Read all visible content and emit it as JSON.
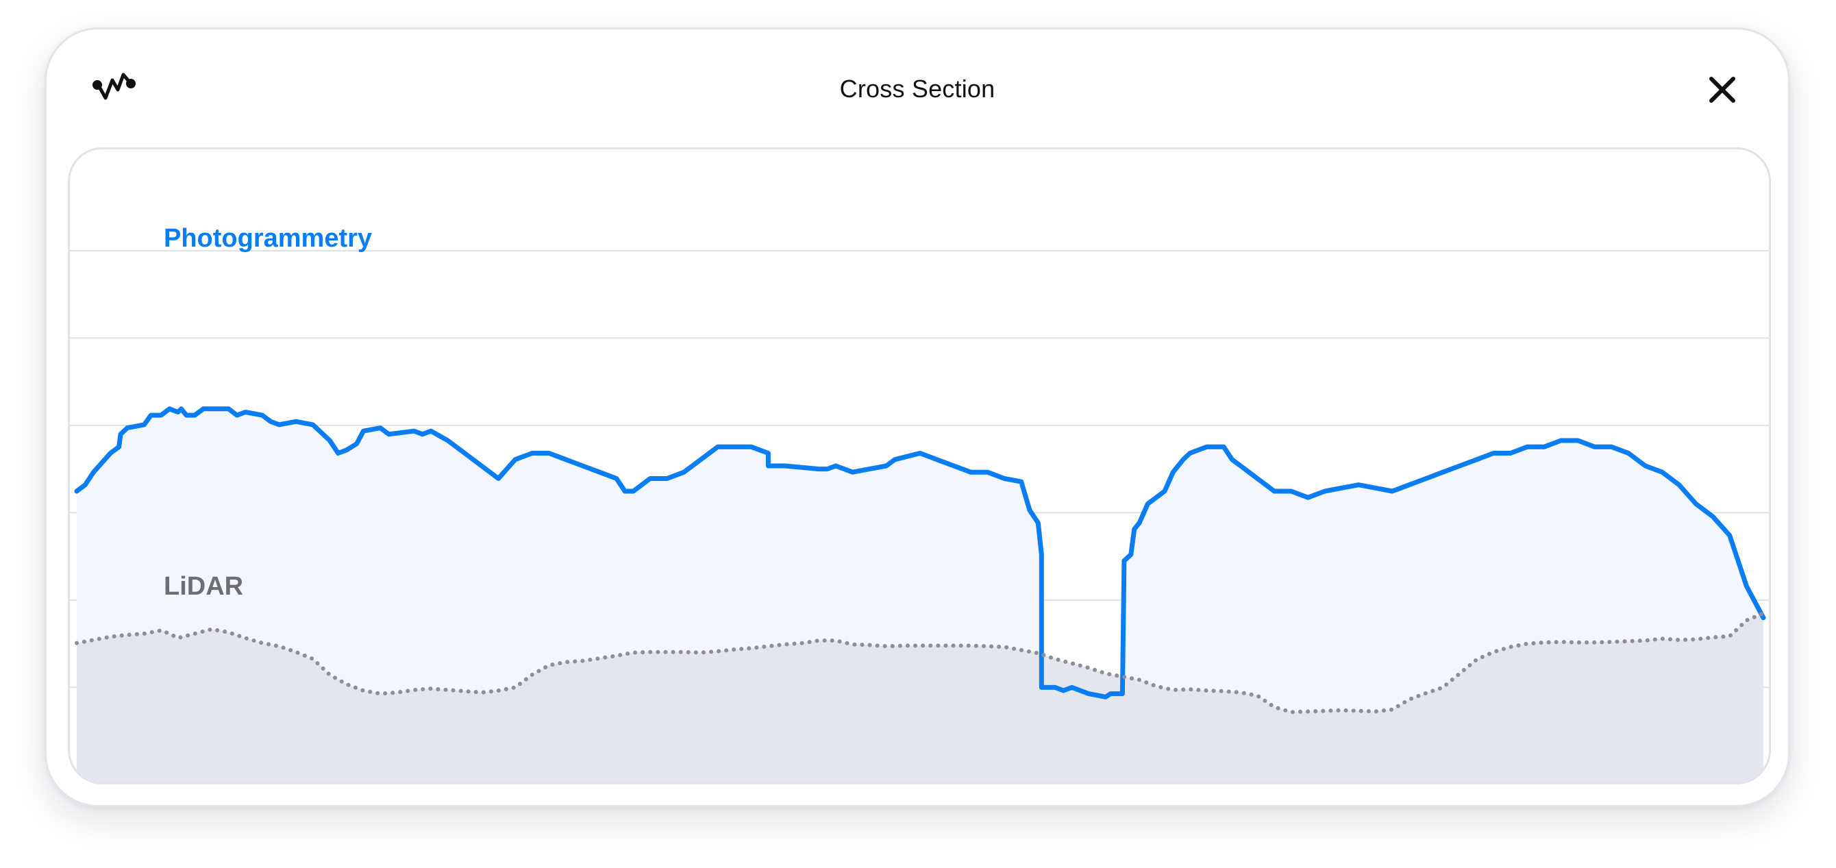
{
  "window": {
    "title": "Cross Section"
  },
  "icons": {
    "app": "waveform-icon",
    "close": "close-icon"
  },
  "colors": {
    "photogrammetry": "#0a7df2",
    "photogrammetry_fill": "#f3f7fd",
    "lidar": "#8d8f94",
    "lidar_fill": "#e3e6ed",
    "grid": "#dde0e5"
  },
  "chart_data": {
    "type": "line",
    "title": "",
    "xlabel": "",
    "ylabel": "",
    "grid": true,
    "ylim": [
      0,
      100
    ],
    "xlim": [
      0,
      100
    ],
    "series": [
      {
        "name": "Photogrammetry",
        "style": "solid",
        "points": [
          [
            0,
            46
          ],
          [
            0.5,
            47
          ],
          [
            1,
            49
          ],
          [
            2,
            52
          ],
          [
            2.5,
            53
          ],
          [
            2.6,
            55
          ],
          [
            3,
            56
          ],
          [
            4,
            56.5
          ],
          [
            4.4,
            58
          ],
          [
            5,
            58
          ],
          [
            5.5,
            59
          ],
          [
            6,
            58.5
          ],
          [
            6.2,
            59
          ],
          [
            6.5,
            58
          ],
          [
            7,
            58
          ],
          [
            7.5,
            59
          ],
          [
            9,
            59
          ],
          [
            9.5,
            58
          ],
          [
            10,
            58.5
          ],
          [
            11,
            58
          ],
          [
            11.5,
            57
          ],
          [
            12,
            56.5
          ],
          [
            13,
            57
          ],
          [
            14,
            56.5
          ],
          [
            15,
            54
          ],
          [
            15.5,
            52
          ],
          [
            16,
            52.5
          ],
          [
            16.6,
            53.5
          ],
          [
            17,
            55.5
          ],
          [
            18,
            56
          ],
          [
            18.5,
            55
          ],
          [
            20,
            55.5
          ],
          [
            20.5,
            55
          ],
          [
            21,
            55.5
          ],
          [
            22,
            54
          ],
          [
            23,
            52
          ],
          [
            24,
            50
          ],
          [
            25,
            48
          ],
          [
            25.5,
            49.5
          ],
          [
            26,
            51
          ],
          [
            27,
            52
          ],
          [
            28,
            52
          ],
          [
            29,
            51
          ],
          [
            30,
            50
          ],
          [
            31,
            49
          ],
          [
            32,
            48
          ],
          [
            32.5,
            46
          ],
          [
            33,
            46
          ],
          [
            33.5,
            47
          ],
          [
            34,
            48
          ],
          [
            35,
            48
          ],
          [
            36,
            49
          ],
          [
            37,
            51
          ],
          [
            38,
            53
          ],
          [
            39,
            53
          ],
          [
            40,
            53
          ],
          [
            41,
            52
          ],
          [
            41,
            50
          ],
          [
            42,
            50
          ],
          [
            44,
            49.5
          ],
          [
            44.5,
            49.5
          ],
          [
            45,
            50
          ],
          [
            46,
            49
          ],
          [
            47,
            49.5
          ],
          [
            48,
            50
          ],
          [
            48.5,
            51
          ],
          [
            50,
            52
          ],
          [
            51,
            51
          ],
          [
            52,
            50
          ],
          [
            53,
            49
          ],
          [
            54,
            49
          ],
          [
            55,
            48
          ],
          [
            56,
            47.5
          ],
          [
            56.5,
            43
          ],
          [
            57,
            41
          ],
          [
            57.2,
            36
          ],
          [
            57.2,
            15
          ],
          [
            57.7,
            15
          ],
          [
            58,
            15
          ],
          [
            58.5,
            14.5
          ],
          [
            59,
            15
          ],
          [
            60,
            14
          ],
          [
            61,
            13.5
          ],
          [
            61.3,
            14
          ],
          [
            62,
            14
          ],
          [
            62.1,
            35
          ],
          [
            62.5,
            36
          ],
          [
            62.7,
            40
          ],
          [
            63,
            41
          ],
          [
            63.5,
            44
          ],
          [
            64,
            45
          ],
          [
            64.5,
            46
          ],
          [
            65,
            49
          ],
          [
            65.6,
            51
          ],
          [
            66,
            52
          ],
          [
            66.5,
            52.5
          ],
          [
            67,
            53
          ],
          [
            68,
            53
          ],
          [
            68.5,
            51
          ],
          [
            69,
            50
          ],
          [
            69.5,
            49
          ],
          [
            70,
            48
          ],
          [
            70.5,
            47
          ],
          [
            71,
            46
          ],
          [
            72,
            46
          ],
          [
            73,
            45
          ],
          [
            74,
            46
          ],
          [
            75,
            46.5
          ],
          [
            76,
            47
          ],
          [
            77,
            46.5
          ],
          [
            78,
            46
          ],
          [
            79,
            47
          ],
          [
            80,
            48
          ],
          [
            81,
            49
          ],
          [
            82,
            50
          ],
          [
            83,
            51
          ],
          [
            84,
            52
          ],
          [
            85,
            52
          ],
          [
            86,
            53
          ],
          [
            87,
            53
          ],
          [
            88,
            54
          ],
          [
            89,
            54
          ],
          [
            90,
            53
          ],
          [
            91,
            53
          ],
          [
            92,
            52
          ],
          [
            93,
            50
          ],
          [
            94,
            49
          ],
          [
            95,
            47
          ],
          [
            96,
            44
          ],
          [
            97,
            42
          ],
          [
            98,
            39
          ],
          [
            99,
            31
          ],
          [
            100,
            26
          ]
        ]
      },
      {
        "name": "LiDAR",
        "style": "dotted",
        "points": [
          [
            0,
            22
          ],
          [
            1,
            22.5
          ],
          [
            2,
            23
          ],
          [
            3,
            23.3
          ],
          [
            4,
            23.5
          ],
          [
            5,
            24
          ],
          [
            5.5,
            23.5
          ],
          [
            6,
            22.8
          ],
          [
            7,
            23.5
          ],
          [
            8,
            24.2
          ],
          [
            9,
            23.7
          ],
          [
            10,
            22.8
          ],
          [
            11,
            22
          ],
          [
            12,
            21.5
          ],
          [
            13,
            20.6
          ],
          [
            14,
            19.5
          ],
          [
            15,
            17
          ],
          [
            16,
            15.5
          ],
          [
            17,
            14.5
          ],
          [
            18,
            14
          ],
          [
            19,
            14.2
          ],
          [
            20,
            14.6
          ],
          [
            21,
            14.8
          ],
          [
            22,
            14.6
          ],
          [
            23,
            14.4
          ],
          [
            24,
            14.2
          ],
          [
            25,
            14.5
          ],
          [
            26,
            15
          ],
          [
            27,
            17
          ],
          [
            28,
            18.5
          ],
          [
            29,
            19
          ],
          [
            30,
            19.2
          ],
          [
            31,
            19.6
          ],
          [
            32,
            20
          ],
          [
            33,
            20.5
          ],
          [
            34,
            20.6
          ],
          [
            35,
            20.6
          ],
          [
            36,
            20.6
          ],
          [
            37,
            20.5
          ],
          [
            38,
            20.7
          ],
          [
            39,
            21
          ],
          [
            40,
            21.2
          ],
          [
            41,
            21.5
          ],
          [
            42,
            21.8
          ],
          [
            43,
            22
          ],
          [
            44,
            22.4
          ],
          [
            45,
            22.4
          ],
          [
            46,
            21.8
          ],
          [
            47,
            21.7
          ],
          [
            48,
            21.5
          ],
          [
            49,
            21.6
          ],
          [
            50,
            21.6
          ],
          [
            51,
            21.6
          ],
          [
            52,
            21.6
          ],
          [
            53,
            21.6
          ],
          [
            54,
            21.5
          ],
          [
            55,
            21.4
          ],
          [
            56,
            20.9
          ],
          [
            57,
            20.4
          ],
          [
            58,
            19.5
          ],
          [
            59,
            18.8
          ],
          [
            60,
            18.1
          ],
          [
            61,
            17.2
          ],
          [
            62,
            16.7
          ],
          [
            63,
            16.2
          ],
          [
            64,
            15.2
          ],
          [
            65,
            14.6
          ],
          [
            66,
            14.7
          ],
          [
            67,
            14.5
          ],
          [
            68,
            14.4
          ],
          [
            69,
            14.2
          ],
          [
            70,
            13.7
          ],
          [
            71,
            11.9
          ],
          [
            72,
            11.1
          ],
          [
            73,
            11.2
          ],
          [
            74,
            11.3
          ],
          [
            75,
            11.4
          ],
          [
            76,
            11.3
          ],
          [
            77,
            11.2
          ],
          [
            78,
            11.5
          ],
          [
            79,
            13.1
          ],
          [
            80,
            14.1
          ],
          [
            81,
            15
          ],
          [
            82,
            17.2
          ],
          [
            83,
            19.4
          ],
          [
            84,
            20.6
          ],
          [
            85,
            21.4
          ],
          [
            86,
            21.9
          ],
          [
            87,
            22.1
          ],
          [
            88,
            22.2
          ],
          [
            89,
            22.1
          ],
          [
            90,
            22.1
          ],
          [
            91,
            22.2
          ],
          [
            92,
            22.3
          ],
          [
            93,
            22.4
          ],
          [
            94,
            22.7
          ],
          [
            95,
            22.5
          ],
          [
            96,
            22.6
          ],
          [
            97,
            22.9
          ],
          [
            98,
            23.1
          ],
          [
            99,
            25.6
          ],
          [
            100,
            26.7
          ]
        ]
      }
    ]
  }
}
